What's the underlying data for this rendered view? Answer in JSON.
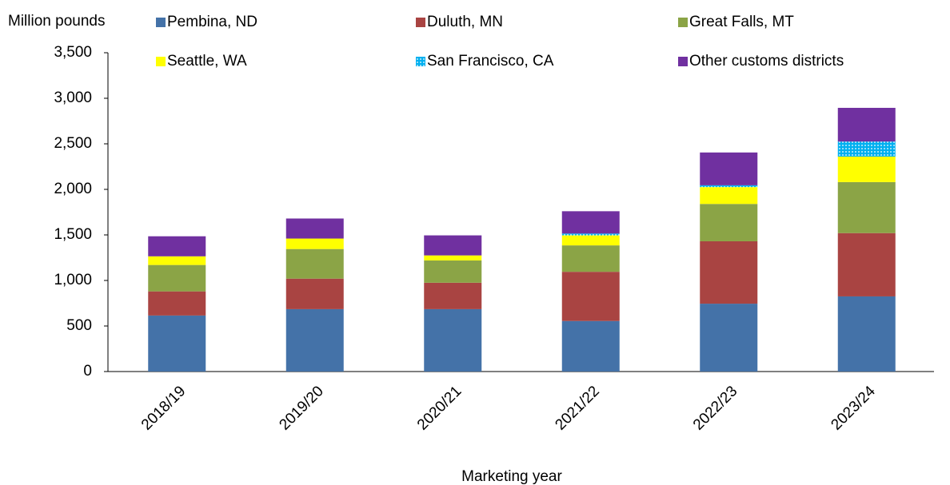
{
  "chart_data": {
    "type": "stacked_bar",
    "y_label": "Million pounds",
    "x_label": "Marketing year",
    "categories": [
      "2018/19",
      "2019/20",
      "2020/21",
      "2021/22",
      "2022/23",
      "2023/24"
    ],
    "series": [
      {
        "name": "Pembina, ND",
        "color": "#4472a8",
        "values": [
          615,
          685,
          685,
          555,
          745,
          825
        ]
      },
      {
        "name": "Duluth, MN",
        "color": "#a94442",
        "values": [
          265,
          335,
          290,
          540,
          685,
          695
        ]
      },
      {
        "name": "Great Falls, MT",
        "color": "#8ba446",
        "values": [
          290,
          325,
          245,
          290,
          410,
          560
        ]
      },
      {
        "name": "Seattle, WA",
        "color": "#ffff00",
        "values": [
          95,
          115,
          55,
          110,
          185,
          280
        ]
      },
      {
        "name": "San Francisco, CA",
        "color": "#00b0f0",
        "pattern": "dots",
        "values": [
          0,
          0,
          0,
          20,
          20,
          165
        ]
      },
      {
        "name": "Other customs districts",
        "color": "#7030a0",
        "values": [
          220,
          220,
          220,
          245,
          360,
          370
        ]
      }
    ],
    "ylim": [
      0,
      3500
    ],
    "yticks": [
      0,
      500,
      {
        "value": 1000,
        "label": "1,000"
      },
      {
        "value": 1500,
        "label": "1,500"
      },
      {
        "value": 2000,
        "label": "2,000"
      },
      {
        "value": 2500,
        "label": "2,500"
      },
      {
        "value": 3000,
        "label": "3,000"
      },
      {
        "value": 3500,
        "label": "3,500"
      }
    ]
  }
}
